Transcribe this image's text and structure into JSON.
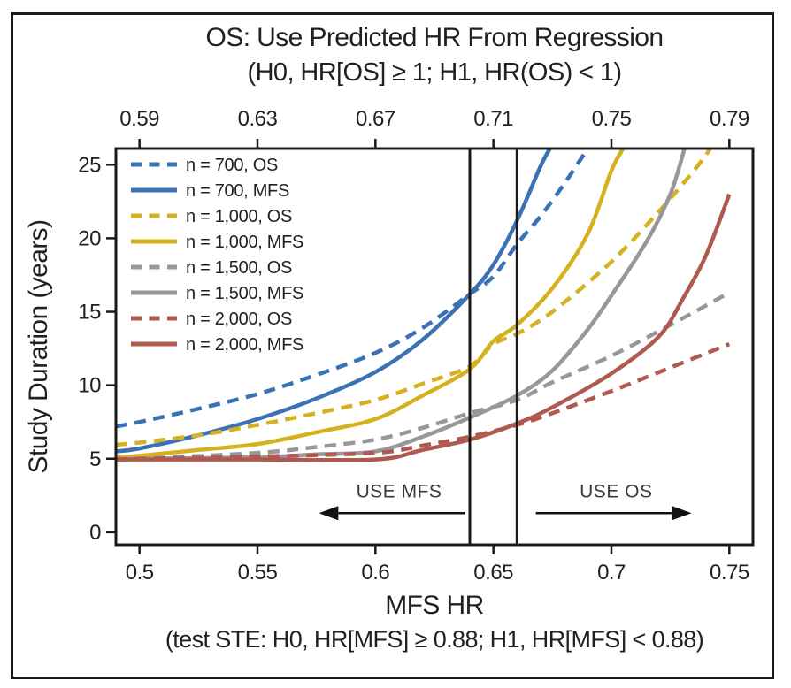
{
  "figure": {
    "title_line1": "OS: Use Predicted HR From Regression",
    "title_line2": "(H0, HR[OS] ≥ 1; H1, HR(OS) < 1)",
    "y_axis_label": "Study Duration (years)",
    "x_axis_label_line1": "MFS HR",
    "x_axis_label_line2": "(test STE: H0, HR[MFS] ≥ 0.88; H1, HR[MFS] < 0.88)"
  },
  "chart_data": {
    "type": "line",
    "title": "OS: Use Predicted HR From Regression (H0, HR[OS] ≥ 1; H1, HR(OS) < 1)",
    "xlabel": "MFS HR (test STE: H0, HR[MFS] ≥ 0.88; H1, HR[MFS] < 0.88)",
    "ylabel": "Study Duration (years)",
    "grid": false,
    "legend_position": "upper-left-inside",
    "xlim": [
      0.49,
      0.76
    ],
    "ylim": [
      -0.85,
      26.1
    ],
    "x_ticks": [
      0.5,
      0.55,
      0.6,
      0.65,
      0.7,
      0.75
    ],
    "x_tick_labels": [
      "0.5",
      "0.55",
      "0.6",
      "0.65",
      "0.7",
      "0.75"
    ],
    "y_ticks": [
      0,
      5,
      10,
      15,
      20,
      25
    ],
    "y_tick_labels": [
      "0",
      "5",
      "10",
      "15",
      "20",
      "25"
    ],
    "top_axis": {
      "xlim": [
        0.582,
        0.798
      ],
      "ticks": [
        0.59,
        0.63,
        0.67,
        0.71,
        0.75,
        0.79
      ],
      "tick_labels": [
        "0.59",
        "0.63",
        "0.67",
        "0.71",
        "0.75",
        "0.79"
      ]
    },
    "vlines": [
      0.64,
      0.66
    ],
    "colors": {
      "blue": "#3a72b4",
      "yellow": "#d6b11f",
      "gray": "#98989a",
      "red": "#ae5a50",
      "axis": "#1a1a1a"
    },
    "series": [
      {
        "name": "n = 700, OS",
        "color": "#3a72b4",
        "style": "dashed",
        "points": [
          [
            0.49,
            7.2
          ],
          [
            0.5,
            7.5
          ],
          [
            0.525,
            8.4
          ],
          [
            0.55,
            9.4
          ],
          [
            0.575,
            10.7
          ],
          [
            0.6,
            12.2
          ],
          [
            0.62,
            13.9
          ],
          [
            0.64,
            16.2
          ],
          [
            0.65,
            17.4
          ],
          [
            0.66,
            19.6
          ],
          [
            0.67,
            21.5
          ],
          [
            0.68,
            23.7
          ],
          [
            0.69,
            26.1
          ]
        ]
      },
      {
        "name": "n = 700, MFS",
        "color": "#3a72b4",
        "style": "solid",
        "points": [
          [
            0.49,
            5.5
          ],
          [
            0.5,
            5.7
          ],
          [
            0.525,
            6.6
          ],
          [
            0.55,
            7.7
          ],
          [
            0.575,
            9.1
          ],
          [
            0.6,
            10.9
          ],
          [
            0.62,
            13.1
          ],
          [
            0.64,
            16.2
          ],
          [
            0.65,
            18.2
          ],
          [
            0.66,
            21.2
          ],
          [
            0.67,
            24.9
          ],
          [
            0.674,
            26.1
          ]
        ]
      },
      {
        "name": "n = 1,000, OS",
        "color": "#d6b11f",
        "style": "dashed",
        "points": [
          [
            0.49,
            5.95
          ],
          [
            0.5,
            6.1
          ],
          [
            0.525,
            6.6
          ],
          [
            0.55,
            7.3
          ],
          [
            0.575,
            8.1
          ],
          [
            0.6,
            9.0
          ],
          [
            0.62,
            10.1
          ],
          [
            0.64,
            11.3
          ],
          [
            0.65,
            12.8
          ],
          [
            0.66,
            13.5
          ],
          [
            0.675,
            15.0
          ],
          [
            0.7,
            18.4
          ],
          [
            0.72,
            21.8
          ],
          [
            0.735,
            24.6
          ],
          [
            0.742,
            26.1
          ]
        ]
      },
      {
        "name": "n = 1,000, MFS",
        "color": "#d6b11f",
        "style": "solid",
        "points": [
          [
            0.49,
            5.1
          ],
          [
            0.5,
            5.2
          ],
          [
            0.525,
            5.6
          ],
          [
            0.55,
            6.0
          ],
          [
            0.575,
            6.8
          ],
          [
            0.6,
            7.7
          ],
          [
            0.62,
            9.3
          ],
          [
            0.64,
            11.1
          ],
          [
            0.65,
            13.0
          ],
          [
            0.66,
            14.1
          ],
          [
            0.675,
            16.6
          ],
          [
            0.69,
            20.3
          ],
          [
            0.7,
            24.6
          ],
          [
            0.705,
            26.1
          ]
        ]
      },
      {
        "name": "n = 1,500, OS",
        "color": "#98989a",
        "style": "dashed",
        "points": [
          [
            0.49,
            4.95
          ],
          [
            0.5,
            5.0
          ],
          [
            0.55,
            5.4
          ],
          [
            0.575,
            5.8
          ],
          [
            0.6,
            6.3
          ],
          [
            0.62,
            7.1
          ],
          [
            0.64,
            8.1
          ],
          [
            0.66,
            9.0
          ],
          [
            0.675,
            10.2
          ],
          [
            0.7,
            12.0
          ],
          [
            0.725,
            14.1
          ],
          [
            0.75,
            16.3
          ]
        ]
      },
      {
        "name": "n = 1,500, MFS",
        "color": "#98989a",
        "style": "solid",
        "points": [
          [
            0.49,
            4.95
          ],
          [
            0.5,
            5.0
          ],
          [
            0.55,
            5.1
          ],
          [
            0.575,
            5.3
          ],
          [
            0.6,
            5.5
          ],
          [
            0.62,
            6.5
          ],
          [
            0.64,
            7.8
          ],
          [
            0.66,
            9.3
          ],
          [
            0.675,
            11.0
          ],
          [
            0.69,
            13.8
          ],
          [
            0.7,
            16.1
          ],
          [
            0.715,
            19.8
          ],
          [
            0.725,
            23.0
          ],
          [
            0.731,
            26.1
          ]
        ]
      },
      {
        "name": "n = 2,000, OS",
        "color": "#ae5a50",
        "style": "dashed",
        "points": [
          [
            0.49,
            4.95
          ],
          [
            0.5,
            5.0
          ],
          [
            0.55,
            5.15
          ],
          [
            0.6,
            5.4
          ],
          [
            0.62,
            5.9
          ],
          [
            0.64,
            6.5
          ],
          [
            0.66,
            7.3
          ],
          [
            0.675,
            8.1
          ],
          [
            0.7,
            9.6
          ],
          [
            0.725,
            11.2
          ],
          [
            0.75,
            12.8
          ]
        ]
      },
      {
        "name": "n = 2,000, MFS",
        "color": "#ae5a50",
        "style": "solid",
        "points": [
          [
            0.49,
            4.95
          ],
          [
            0.5,
            4.95
          ],
          [
            0.55,
            4.95
          ],
          [
            0.6,
            4.95
          ],
          [
            0.62,
            5.6
          ],
          [
            0.64,
            6.3
          ],
          [
            0.66,
            7.4
          ],
          [
            0.675,
            8.5
          ],
          [
            0.7,
            10.8
          ],
          [
            0.72,
            13.3
          ],
          [
            0.73,
            15.8
          ],
          [
            0.74,
            18.8
          ],
          [
            0.75,
            23.0
          ]
        ]
      }
    ],
    "annotations": [
      {
        "label": "USE MFS",
        "text_x": 0.61,
        "text_y": 2.8,
        "arrow_y": 1.3,
        "arrow_from": 0.638,
        "arrow_to": 0.576,
        "direction": "left"
      },
      {
        "label": "USE OS",
        "text_x": 0.702,
        "text_y": 2.8,
        "arrow_y": 1.3,
        "arrow_from": 0.668,
        "arrow_to": 0.734,
        "direction": "right"
      }
    ]
  }
}
